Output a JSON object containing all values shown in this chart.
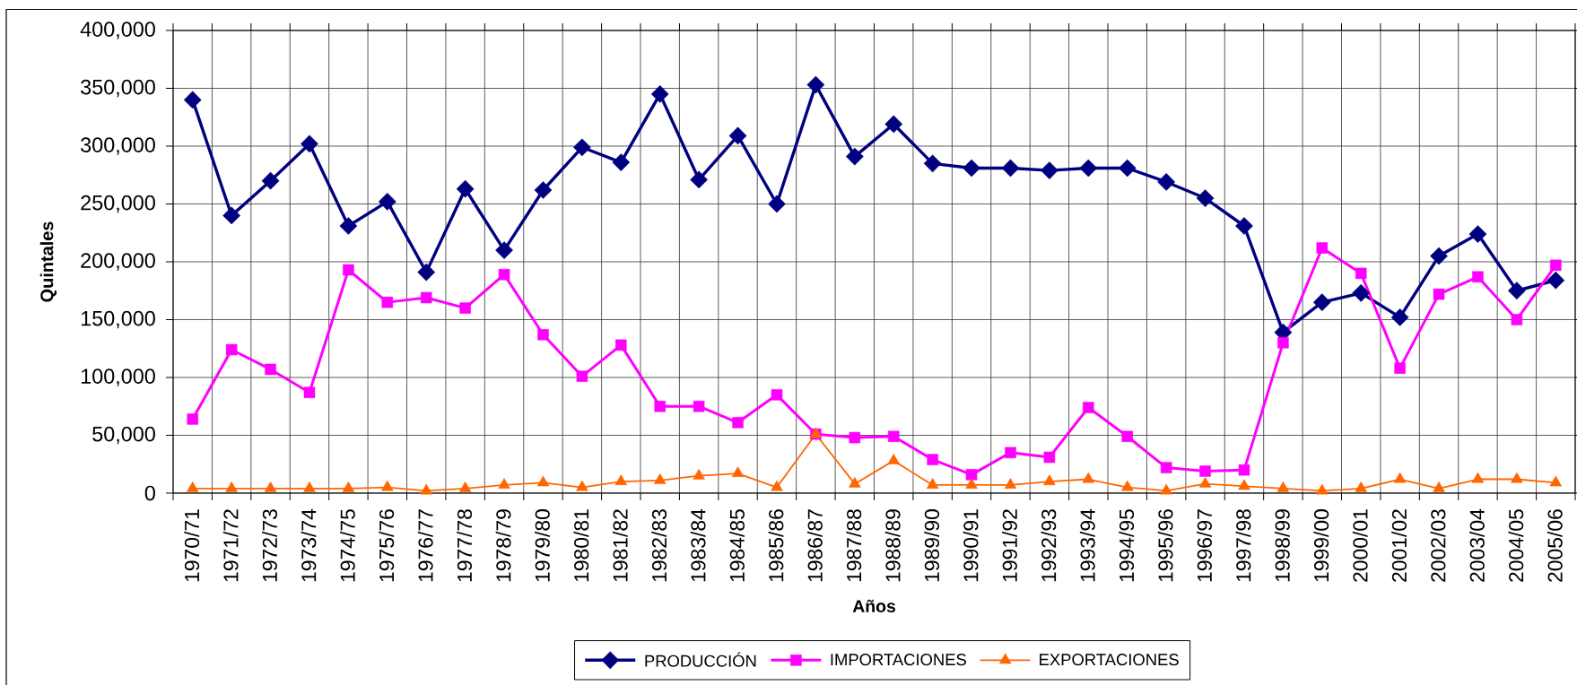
{
  "chart_data": {
    "type": "line",
    "xlabel": "Años",
    "ylabel": "Quintales",
    "categories": [
      "1970/71",
      "1971/72",
      "1972/73",
      "1973/74",
      "1974/75",
      "1975/76",
      "1976/77",
      "1977/78",
      "1978/79",
      "1979/80",
      "1980/81",
      "1981/82",
      "1982/83",
      "1983/84",
      "1984/85",
      "1985/86",
      "1986/87",
      "1987/88",
      "1988/89",
      "1989/90",
      "1990/91",
      "1991/92",
      "1992/93",
      "1993/94",
      "1994/95",
      "1995/96",
      "1996/97",
      "1997/98",
      "1998/99",
      "1999/00",
      "2000/01",
      "2001/02",
      "2002/03",
      "2003/04",
      "2004/05",
      "2005/06"
    ],
    "series": [
      {
        "name": "PRODUCCIÓN",
        "color": "#000080",
        "marker": "diamond",
        "values": [
          340000,
          240000,
          270000,
          302000,
          231000,
          252000,
          191000,
          263000,
          210000,
          262000,
          299000,
          286000,
          345000,
          271000,
          309000,
          250000,
          353000,
          291000,
          319000,
          285000,
          281000,
          281000,
          279000,
          281000,
          281000,
          269000,
          255000,
          231000,
          139000,
          165000,
          173000,
          152000,
          205000,
          224000,
          175000,
          184000
        ]
      },
      {
        "name": "IMPORTACIONES",
        "color": "#ff00ff",
        "marker": "square",
        "values": [
          64000,
          124000,
          107000,
          87000,
          193000,
          165000,
          169000,
          160000,
          189000,
          137000,
          101000,
          128000,
          75000,
          75000,
          61000,
          85000,
          51000,
          48000,
          49000,
          29000,
          16000,
          35000,
          31000,
          74000,
          49000,
          22000,
          19000,
          20000,
          130000,
          212000,
          190000,
          108000,
          172000,
          187000,
          150000,
          197000
        ]
      },
      {
        "name": "EXPORTACIONES",
        "color": "#ff6600",
        "marker": "triangle",
        "values": [
          4000,
          4000,
          4000,
          4000,
          4000,
          5000,
          2000,
          4000,
          7000,
          9000,
          5000,
          10000,
          11000,
          15000,
          17000,
          5000,
          51000,
          8000,
          28000,
          7000,
          7000,
          7000,
          10000,
          12000,
          5000,
          2000,
          8000,
          6000,
          4000,
          2000,
          4000,
          12000,
          4000,
          12000,
          12000,
          9000
        ]
      }
    ],
    "ylim": [
      0,
      400000
    ],
    "yticks": [
      0,
      {
        "value": 50000,
        "label": "50,000"
      },
      {
        "value": 100000,
        "label": "100,000"
      },
      {
        "value": 150000,
        "label": "150,000"
      },
      {
        "value": 200000,
        "label": "200,000"
      },
      {
        "value": 250000,
        "label": "250,000"
      },
      {
        "value": 300000,
        "label": "300,000"
      },
      {
        "value": 350000,
        "label": "350,000"
      },
      {
        "value": 400000,
        "label": "400,000"
      }
    ],
    "grid": true,
    "legend": "bottom"
  }
}
